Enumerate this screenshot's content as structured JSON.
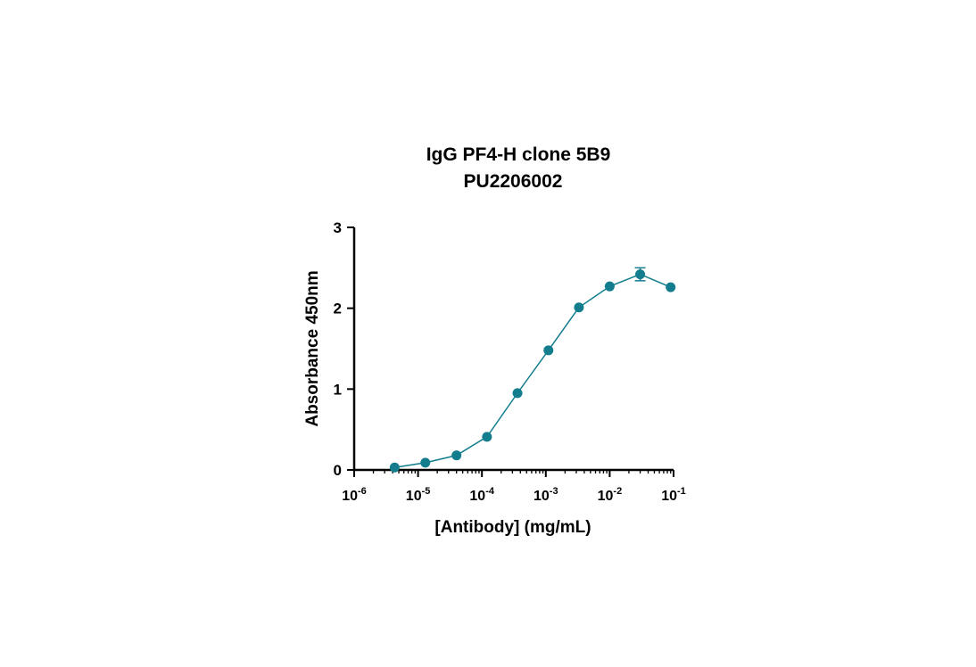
{
  "chart_data": {
    "type": "scatter",
    "title": "IgG PF4-H clone 5B9",
    "subtitle": "PU2206002",
    "xlabel": "[Antibody] (mg/mL)",
    "ylabel": "Absorbance 450nm",
    "x_scale": "log",
    "xlim": [
      1e-06,
      0.1
    ],
    "ylim": [
      0,
      3
    ],
    "grid": false,
    "x_ticks": [
      {
        "value": 1e-06,
        "base": "10",
        "exp": "-6"
      },
      {
        "value": 1e-05,
        "base": "10",
        "exp": "-5"
      },
      {
        "value": 0.0001,
        "base": "10",
        "exp": "-4"
      },
      {
        "value": 0.001,
        "base": "10",
        "exp": "-3"
      },
      {
        "value": 0.01,
        "base": "10",
        "exp": "-2"
      },
      {
        "value": 0.1,
        "base": "10",
        "exp": "-1"
      }
    ],
    "y_ticks": [
      {
        "value": 0,
        "label": "0"
      },
      {
        "value": 1,
        "label": "1"
      },
      {
        "value": 2,
        "label": "2"
      },
      {
        "value": 3,
        "label": "3"
      }
    ],
    "series": [
      {
        "color": "#137d8d",
        "points": [
          {
            "x": 4.3e-06,
            "y": 0.03,
            "err": 0
          },
          {
            "x": 1.3e-05,
            "y": 0.09,
            "err": 0
          },
          {
            "x": 4e-05,
            "y": 0.18,
            "err": 0
          },
          {
            "x": 0.00012,
            "y": 0.41,
            "err": 0
          },
          {
            "x": 0.00036,
            "y": 0.95,
            "err": 0
          },
          {
            "x": 0.0011,
            "y": 1.48,
            "err": 0
          },
          {
            "x": 0.0033,
            "y": 2.01,
            "err": 0
          },
          {
            "x": 0.01,
            "y": 2.27,
            "err": 0
          },
          {
            "x": 0.03,
            "y": 2.42,
            "err": 0.08
          },
          {
            "x": 0.09,
            "y": 2.26,
            "err": 0
          }
        ]
      }
    ]
  }
}
